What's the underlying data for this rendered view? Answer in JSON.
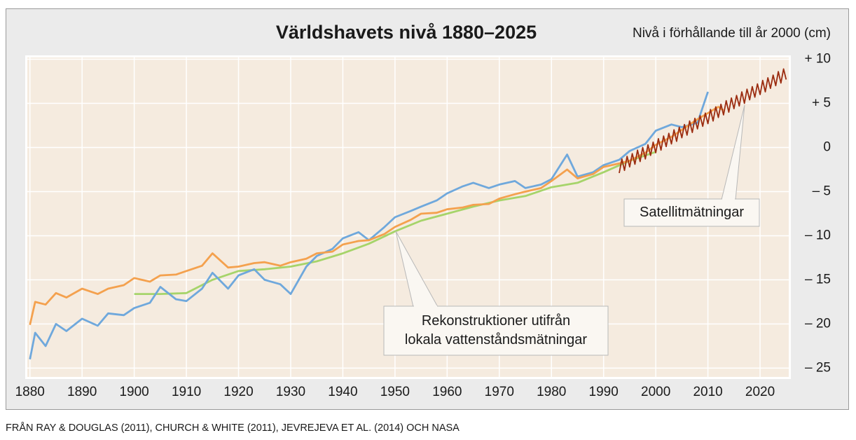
{
  "chart_data": {
    "type": "line",
    "title": "Världshavets nivå 1880–2025",
    "y_axis_label": "Nivå i förhållande till år 2000 (cm)",
    "source": "FRÅN RAY & DOUGLAS (2011), CHURCH & WHITE (2011), JEVREJEVA ET AL. (2014) OCH NASA",
    "xlim": [
      1879.5,
      2025.5
    ],
    "ylim": [
      -26,
      10.2
    ],
    "xticks": [
      1880,
      1890,
      1900,
      1910,
      1920,
      1930,
      1940,
      1950,
      1960,
      1970,
      1980,
      1990,
      2000,
      2010,
      2020
    ],
    "yticks": [
      {
        "value": 10,
        "label": "+ 10"
      },
      {
        "value": 5,
        "label": "+ 5"
      },
      0,
      {
        "value": -5,
        "label": "– 5"
      },
      {
        "value": -10,
        "label": "– 10"
      },
      {
        "value": -15,
        "label": "– 15"
      },
      {
        "value": -20,
        "label": "– 20"
      },
      {
        "value": -25,
        "label": "– 25"
      }
    ],
    "grid": true,
    "series": [
      {
        "color": "#a6d46a",
        "x": [
          1900,
          1905,
          1910,
          1915,
          1920,
          1925,
          1930,
          1935,
          1940,
          1945,
          1950,
          1955,
          1960,
          1965,
          1970,
          1975,
          1980,
          1985,
          1990,
          1995,
          2000
        ],
        "values": [
          -16.6,
          -16.6,
          -16.5,
          -15.0,
          -14.0,
          -13.8,
          -13.5,
          -12.9,
          -12.0,
          -10.9,
          -9.5,
          -8.3,
          -7.5,
          -6.7,
          -6.0,
          -5.5,
          -4.5,
          -4.0,
          -2.8,
          -1.5,
          -0.5
        ]
      },
      {
        "color": "#6fa8dc",
        "x": [
          1880,
          1881,
          1883,
          1885,
          1887,
          1890,
          1893,
          1895,
          1898,
          1900,
          1903,
          1905,
          1908,
          1910,
          1913,
          1915,
          1918,
          1920,
          1923,
          1925,
          1928,
          1930,
          1933,
          1935,
          1938,
          1940,
          1943,
          1945,
          1948,
          1950,
          1953,
          1955,
          1958,
          1960,
          1963,
          1965,
          1968,
          1970,
          1973,
          1975,
          1978,
          1980,
          1983,
          1985,
          1988,
          1990,
          1993,
          1995,
          1998,
          2000,
          2003,
          2005,
          2008,
          2010
        ],
        "values": [
          -24.0,
          -21.0,
          -22.5,
          -20.0,
          -20.8,
          -19.4,
          -20.2,
          -18.8,
          -19.0,
          -18.2,
          -17.6,
          -15.8,
          -17.2,
          -17.4,
          -16.0,
          -14.2,
          -16.0,
          -14.5,
          -13.8,
          -15.0,
          -15.5,
          -16.6,
          -13.5,
          -12.3,
          -11.5,
          -10.3,
          -9.6,
          -10.5,
          -9.0,
          -7.9,
          -7.2,
          -6.7,
          -6.0,
          -5.2,
          -4.4,
          -4.0,
          -4.6,
          -4.2,
          -3.8,
          -4.6,
          -4.2,
          -3.6,
          -0.8,
          -3.3,
          -2.8,
          -2.0,
          -1.4,
          -0.4,
          0.4,
          1.9,
          2.6,
          2.3,
          2.8,
          6.3
        ]
      },
      {
        "color": "#f4a14e",
        "x": [
          1880,
          1881,
          1883,
          1885,
          1887,
          1890,
          1893,
          1895,
          1898,
          1900,
          1903,
          1905,
          1908,
          1910,
          1913,
          1915,
          1918,
          1920,
          1923,
          1925,
          1928,
          1930,
          1933,
          1935,
          1938,
          1940,
          1943,
          1945,
          1948,
          1950,
          1953,
          1955,
          1958,
          1960,
          1963,
          1965,
          1968,
          1970,
          1973,
          1975,
          1978,
          1980,
          1983,
          1985,
          1988,
          1990,
          1993,
          1995,
          1998,
          2000,
          2003,
          2005,
          2008,
          2010,
          2012,
          2013
        ],
        "values": [
          -20.1,
          -17.5,
          -17.8,
          -16.5,
          -17.0,
          -16.0,
          -16.6,
          -16.0,
          -15.6,
          -14.8,
          -15.2,
          -14.5,
          -14.4,
          -14.0,
          -13.4,
          -12.0,
          -13.6,
          -13.5,
          -13.1,
          -13.0,
          -13.4,
          -13.0,
          -12.6,
          -12.0,
          -11.8,
          -11.0,
          -10.6,
          -10.5,
          -9.8,
          -9.0,
          -8.2,
          -7.5,
          -7.4,
          -7.0,
          -6.8,
          -6.5,
          -6.4,
          -5.8,
          -5.3,
          -5.0,
          -4.6,
          -3.8,
          -2.5,
          -3.5,
          -3.0,
          -2.2,
          -1.8,
          -1.5,
          -0.6,
          0.3,
          1.2,
          2.0,
          3.2,
          3.9,
          4.6,
          4.2
        ]
      },
      {
        "color": "#9b2c10",
        "x": [
          1993,
          1993.5,
          1994,
          1994.5,
          1995,
          1995.5,
          1996,
          1996.5,
          1997,
          1997.5,
          1998,
          1998.5,
          1999,
          1999.5,
          2000,
          2000.5,
          2001,
          2001.5,
          2002,
          2002.5,
          2003,
          2003.5,
          2004,
          2004.5,
          2005,
          2005.5,
          2006,
          2006.5,
          2007,
          2007.5,
          2008,
          2008.5,
          2009,
          2009.5,
          2010,
          2010.5,
          2011,
          2011.5,
          2012,
          2012.5,
          2013,
          2013.5,
          2014,
          2014.5,
          2015,
          2015.5,
          2016,
          2016.5,
          2017,
          2017.5,
          2018,
          2018.5,
          2019,
          2019.5,
          2020,
          2020.5,
          2021,
          2021.5,
          2022,
          2022.5,
          2023,
          2023.5,
          2024,
          2024.5,
          2025
        ],
        "values": [
          -2.9,
          -1.3,
          -2.6,
          -1.0,
          -2.2,
          -0.7,
          -1.9,
          -0.3,
          -1.6,
          0.0,
          -1.3,
          0.3,
          -0.9,
          0.6,
          -0.6,
          1.0,
          -0.3,
          1.3,
          0.1,
          1.6,
          0.4,
          2.0,
          0.7,
          2.3,
          1.1,
          2.6,
          1.4,
          3.0,
          1.7,
          3.3,
          2.1,
          3.6,
          2.4,
          3.9,
          2.7,
          4.3,
          3.0,
          4.6,
          3.4,
          4.9,
          3.7,
          5.3,
          4.0,
          5.6,
          4.4,
          5.9,
          4.7,
          6.3,
          5.0,
          6.6,
          5.4,
          6.9,
          5.7,
          7.2,
          6.0,
          7.6,
          6.3,
          7.9,
          6.7,
          8.2,
          7.0,
          8.6,
          7.3,
          8.9,
          7.7
        ]
      }
    ],
    "annotations": [
      {
        "lines": [
          "Satellitmätningar"
        ]
      },
      {
        "lines": [
          "Rekonstruktioner utifrån",
          "lokala vattenståndsmätningar"
        ]
      }
    ]
  }
}
